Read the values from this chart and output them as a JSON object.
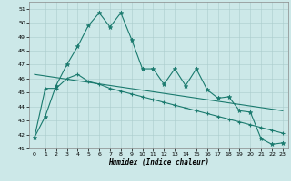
{
  "xlabel": "Humidex (Indice chaleur)",
  "background_color": "#cce8e8",
  "line_color": "#1a7a6e",
  "xlim": [
    -0.5,
    23.5
  ],
  "ylim": [
    41,
    51.5
  ],
  "yticks": [
    41,
    42,
    43,
    44,
    45,
    46,
    47,
    48,
    49,
    50,
    51
  ],
  "xticks": [
    0,
    1,
    2,
    3,
    4,
    5,
    6,
    7,
    8,
    9,
    10,
    11,
    12,
    13,
    14,
    15,
    16,
    17,
    18,
    19,
    20,
    21,
    22,
    23
  ],
  "series1_x": [
    0,
    1,
    2,
    3,
    4,
    5,
    6,
    7,
    8,
    9,
    10,
    11,
    12,
    13,
    14,
    15,
    16,
    17,
    18,
    19,
    20,
    21,
    22,
    23
  ],
  "series1_y": [
    41.8,
    43.3,
    45.5,
    47.0,
    48.3,
    49.8,
    50.7,
    49.7,
    50.7,
    48.8,
    46.7,
    46.7,
    45.6,
    46.7,
    45.5,
    46.7,
    45.2,
    44.6,
    44.7,
    43.7,
    43.6,
    41.7,
    41.3,
    41.4
  ],
  "series2_x": [
    0,
    1,
    2,
    3,
    4,
    5,
    6,
    7,
    8,
    9,
    10,
    11,
    12,
    13,
    14,
    15,
    16,
    17,
    18,
    19,
    20,
    21,
    22,
    23
  ],
  "series2_y": [
    41.8,
    45.3,
    45.3,
    46.0,
    46.3,
    45.8,
    45.6,
    45.3,
    45.1,
    44.9,
    44.7,
    44.5,
    44.3,
    44.1,
    43.9,
    43.7,
    43.5,
    43.3,
    43.1,
    42.9,
    42.7,
    42.5,
    42.3,
    42.1
  ],
  "series3_x": [
    0,
    23
  ],
  "series3_y": [
    46.3,
    43.7
  ]
}
